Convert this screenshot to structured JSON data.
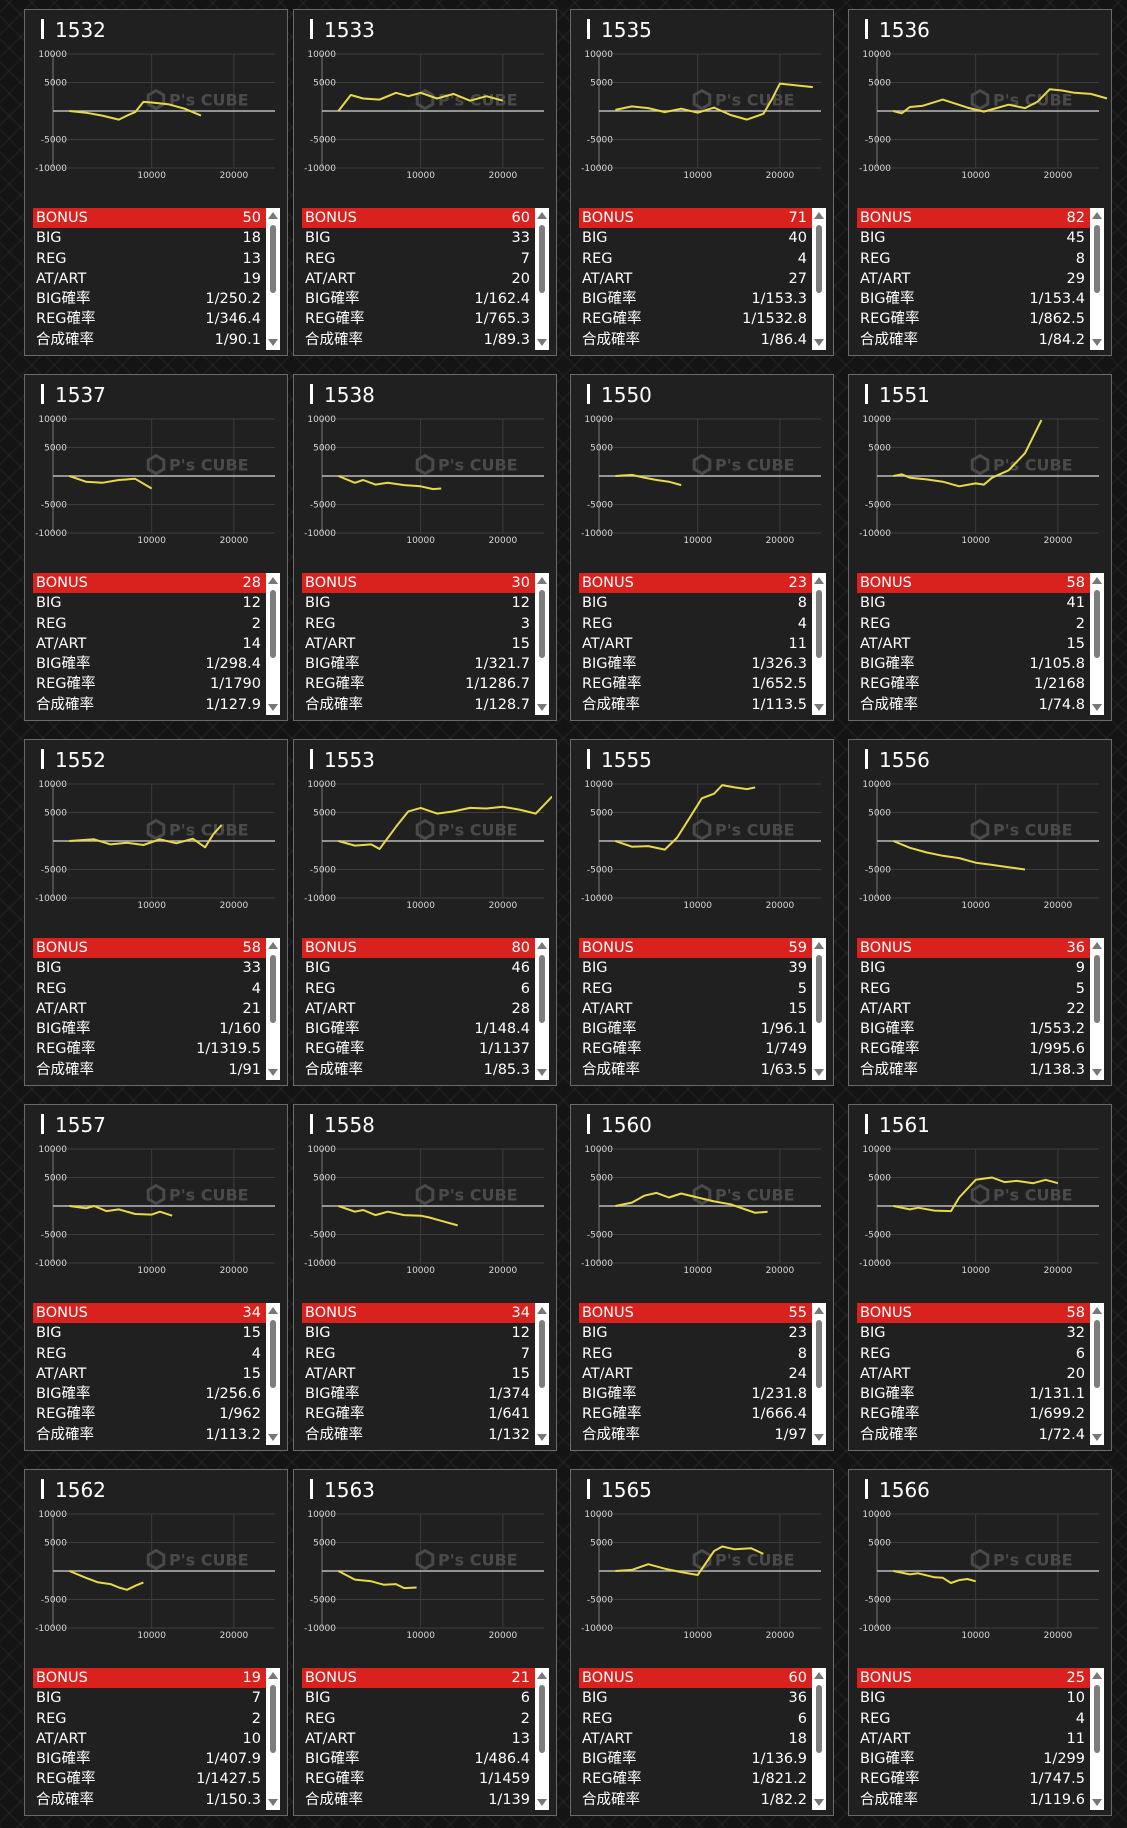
{
  "graph_axis": {
    "y_ticks": [
      "10000",
      "5000",
      "-5000",
      "-10000"
    ],
    "x_ticks": [
      "10000",
      "20000"
    ],
    "watermark_brand": "P's CUBE",
    "line_color": "#e8d84a",
    "zero_line_color": "#bbbbbb"
  },
  "stat_labels": {
    "bonus": "BONUS",
    "big": "BIG",
    "reg": "REG",
    "at_art": "AT/ART",
    "big_prob": "BIG確率",
    "reg_prob": "REG確率",
    "total_prob": "合成確率"
  },
  "colors": {
    "bonus_bar": "#d9211d",
    "card_bg": "#202020",
    "page_bg": "#141414"
  },
  "machines": [
    {
      "number": "1532",
      "bonus": "50",
      "big": "18",
      "reg": "13",
      "at_art": "19",
      "big_prob": "1/250.2",
      "reg_prob": "1/346.4",
      "total_prob": "1/90.1",
      "chart_data": {
        "type": "line",
        "xlim": [
          -2000,
          25000
        ],
        "ylim": [
          -10000,
          10000
        ],
        "x": [
          0,
          2000,
          4000,
          6000,
          7000,
          8000,
          9000,
          10000,
          12000,
          14000,
          16000
        ],
        "y": [
          0,
          -300,
          -800,
          -1500,
          -800,
          -200,
          1600,
          1500,
          1200,
          400,
          -800
        ]
      }
    },
    {
      "number": "1533",
      "bonus": "60",
      "big": "33",
      "reg": "7",
      "at_art": "20",
      "big_prob": "1/162.4",
      "reg_prob": "1/765.3",
      "total_prob": "1/89.3",
      "chart_data": {
        "type": "line",
        "xlim": [
          -2000,
          25000
        ],
        "ylim": [
          -10000,
          10000
        ],
        "x": [
          0,
          1500,
          3000,
          5000,
          7000,
          8500,
          10000,
          12000,
          14000,
          16000,
          18000,
          20000
        ],
        "y": [
          0,
          2800,
          2200,
          2000,
          3200,
          2600,
          3200,
          2200,
          3000,
          1800,
          2600,
          1800
        ]
      }
    },
    {
      "number": "1535",
      "bonus": "71",
      "big": "40",
      "reg": "4",
      "at_art": "27",
      "big_prob": "1/153.3",
      "reg_prob": "1/1532.8",
      "total_prob": "1/86.4",
      "chart_data": {
        "type": "line",
        "xlim": [
          -2000,
          25000
        ],
        "ylim": [
          -10000,
          10000
        ],
        "x": [
          0,
          2000,
          4000,
          6000,
          8000,
          10000,
          12000,
          14000,
          16000,
          18000,
          19000,
          20000,
          22000,
          24000
        ],
        "y": [
          200,
          800,
          500,
          -200,
          400,
          -300,
          600,
          -700,
          -1500,
          -500,
          2000,
          4800,
          4500,
          4200
        ]
      }
    },
    {
      "number": "1536",
      "bonus": "82",
      "big": "45",
      "reg": "8",
      "at_art": "29",
      "big_prob": "1/153.4",
      "reg_prob": "1/862.5",
      "total_prob": "1/84.2",
      "chart_data": {
        "type": "line",
        "xlim": [
          -2000,
          25000
        ],
        "ylim": [
          -10000,
          10000
        ],
        "x": [
          0,
          1000,
          2000,
          3500,
          6000,
          9000,
          11000,
          14000,
          16000,
          17500,
          19000,
          20500,
          22000,
          24000,
          26000
        ],
        "y": [
          0,
          -400,
          700,
          900,
          2000,
          600,
          -100,
          1100,
          500,
          1600,
          3800,
          3600,
          3200,
          3000,
          2200
        ]
      }
    },
    {
      "number": "1537",
      "bonus": "28",
      "big": "12",
      "reg": "2",
      "at_art": "14",
      "big_prob": "1/298.4",
      "reg_prob": "1/1790",
      "total_prob": "1/127.9",
      "chart_data": {
        "type": "line",
        "xlim": [
          -2000,
          25000
        ],
        "ylim": [
          -10000,
          10000
        ],
        "x": [
          0,
          2000,
          4000,
          6000,
          8000,
          10000
        ],
        "y": [
          0,
          -1000,
          -1200,
          -700,
          -500,
          -2200
        ]
      }
    },
    {
      "number": "1538",
      "bonus": "30",
      "big": "12",
      "reg": "3",
      "at_art": "15",
      "big_prob": "1/321.7",
      "reg_prob": "1/1286.7",
      "total_prob": "1/128.7",
      "chart_data": {
        "type": "line",
        "xlim": [
          -2000,
          25000
        ],
        "ylim": [
          -10000,
          10000
        ],
        "x": [
          0,
          2000,
          3000,
          4500,
          6000,
          8000,
          10000,
          11500,
          12500
        ],
        "y": [
          0,
          -1200,
          -700,
          -1500,
          -1200,
          -1600,
          -1800,
          -2300,
          -2200
        ]
      }
    },
    {
      "number": "1550",
      "bonus": "23",
      "big": "8",
      "reg": "4",
      "at_art": "11",
      "big_prob": "1/326.3",
      "reg_prob": "1/652.5",
      "total_prob": "1/113.5",
      "chart_data": {
        "type": "line",
        "xlim": [
          -2000,
          25000
        ],
        "ylim": [
          -10000,
          10000
        ],
        "x": [
          0,
          2000,
          3500,
          5000,
          6500,
          8000
        ],
        "y": [
          0,
          200,
          -300,
          -700,
          -1000,
          -1600
        ]
      }
    },
    {
      "number": "1551",
      "bonus": "58",
      "big": "41",
      "reg": "2",
      "at_art": "15",
      "big_prob": "1/105.8",
      "reg_prob": "1/2168",
      "total_prob": "1/74.8",
      "chart_data": {
        "type": "line",
        "xlim": [
          -2000,
          25000
        ],
        "ylim": [
          -10000,
          10000
        ],
        "x": [
          0,
          1000,
          2000,
          4000,
          6000,
          8000,
          10000,
          11000,
          12000,
          14000,
          16000,
          18000
        ],
        "y": [
          0,
          300,
          -300,
          -600,
          -1000,
          -1800,
          -1300,
          -1500,
          -300,
          1000,
          4000,
          9800
        ]
      }
    },
    {
      "number": "1552",
      "bonus": "58",
      "big": "33",
      "reg": "4",
      "at_art": "21",
      "big_prob": "1/160",
      "reg_prob": "1/1319.5",
      "total_prob": "1/91",
      "chart_data": {
        "type": "line",
        "xlim": [
          -2000,
          25000
        ],
        "ylim": [
          -10000,
          10000
        ],
        "x": [
          0,
          3000,
          5000,
          7000,
          9000,
          11000,
          13000,
          15000,
          16500,
          17500,
          18500
        ],
        "y": [
          0,
          300,
          -600,
          -300,
          -700,
          300,
          -400,
          400,
          -1100,
          1200,
          2800
        ]
      }
    },
    {
      "number": "1553",
      "bonus": "80",
      "big": "46",
      "reg": "6",
      "at_art": "28",
      "big_prob": "1/148.4",
      "reg_prob": "1/1137",
      "total_prob": "1/85.3",
      "chart_data": {
        "type": "line",
        "xlim": [
          -2000,
          25000
        ],
        "ylim": [
          -10000,
          10000
        ],
        "x": [
          0,
          2000,
          4000,
          5000,
          7000,
          8500,
          10000,
          12000,
          14000,
          16000,
          18000,
          20000,
          22000,
          24000,
          26000
        ],
        "y": [
          0,
          -800,
          -600,
          -1400,
          2500,
          5200,
          5800,
          4800,
          5200,
          5800,
          5700,
          6000,
          5500,
          4800,
          7800
        ]
      }
    },
    {
      "number": "1555",
      "bonus": "59",
      "big": "39",
      "reg": "5",
      "at_art": "15",
      "big_prob": "1/96.1",
      "reg_prob": "1/749",
      "total_prob": "1/63.5",
      "chart_data": {
        "type": "line",
        "xlim": [
          -2000,
          25000
        ],
        "ylim": [
          -10000,
          10000
        ],
        "x": [
          0,
          2000,
          4000,
          6000,
          7500,
          9000,
          10500,
          12000,
          13000,
          14500,
          16000,
          17000
        ],
        "y": [
          0,
          -1000,
          -900,
          -1500,
          600,
          4000,
          7500,
          8300,
          9800,
          9400,
          9100,
          9400
        ]
      }
    },
    {
      "number": "1556",
      "bonus": "36",
      "big": "9",
      "reg": "5",
      "at_art": "22",
      "big_prob": "1/553.2",
      "reg_prob": "1/995.6",
      "total_prob": "1/138.3",
      "chart_data": {
        "type": "line",
        "xlim": [
          -2000,
          25000
        ],
        "ylim": [
          -10000,
          10000
        ],
        "x": [
          0,
          2000,
          4000,
          6000,
          8000,
          10000,
          12000,
          14000,
          16000
        ],
        "y": [
          0,
          -1200,
          -2000,
          -2600,
          -3000,
          -3800,
          -4200,
          -4600,
          -5000
        ]
      }
    },
    {
      "number": "1557",
      "bonus": "34",
      "big": "15",
      "reg": "4",
      "at_art": "15",
      "big_prob": "1/256.6",
      "reg_prob": "1/962",
      "total_prob": "1/113.2",
      "chart_data": {
        "type": "line",
        "xlim": [
          -2000,
          25000
        ],
        "ylim": [
          -10000,
          10000
        ],
        "x": [
          0,
          2000,
          3000,
          4500,
          6000,
          8000,
          10000,
          11000,
          12500
        ],
        "y": [
          0,
          -400,
          0,
          -900,
          -600,
          -1400,
          -1500,
          -1000,
          -1700
        ]
      }
    },
    {
      "number": "1558",
      "bonus": "34",
      "big": "12",
      "reg": "7",
      "at_art": "15",
      "big_prob": "1/374",
      "reg_prob": "1/641",
      "total_prob": "1/132",
      "chart_data": {
        "type": "line",
        "xlim": [
          -2000,
          25000
        ],
        "ylim": [
          -10000,
          10000
        ],
        "x": [
          0,
          2000,
          3000,
          4500,
          6000,
          8000,
          10000,
          11000,
          12500,
          14500
        ],
        "y": [
          0,
          -1000,
          -700,
          -1600,
          -1000,
          -1600,
          -1700,
          -2000,
          -2600,
          -3400
        ]
      }
    },
    {
      "number": "1560",
      "bonus": "55",
      "big": "23",
      "reg": "8",
      "at_art": "24",
      "big_prob": "1/231.8",
      "reg_prob": "1/666.4",
      "total_prob": "1/97",
      "chart_data": {
        "type": "line",
        "xlim": [
          -2000,
          25000
        ],
        "ylim": [
          -10000,
          10000
        ],
        "x": [
          0,
          2000,
          3500,
          5000,
          6500,
          8000,
          10000,
          12000,
          14000,
          16000,
          17000,
          18500
        ],
        "y": [
          0,
          600,
          1800,
          2300,
          1500,
          2200,
          1500,
          800,
          300,
          -700,
          -1200,
          -1000
        ]
      }
    },
    {
      "number": "1561",
      "bonus": "58",
      "big": "32",
      "reg": "6",
      "at_art": "20",
      "big_prob": "1/131.1",
      "reg_prob": "1/699.2",
      "total_prob": "1/72.4",
      "chart_data": {
        "type": "line",
        "xlim": [
          -2000,
          25000
        ],
        "ylim": [
          -10000,
          10000
        ],
        "x": [
          0,
          2000,
          3000,
          5000,
          7000,
          8000,
          10000,
          12000,
          13500,
          15000,
          17000,
          18500,
          20000
        ],
        "y": [
          0,
          -600,
          -300,
          -800,
          -900,
          1500,
          4600,
          5000,
          4200,
          4400,
          4000,
          4600,
          4000
        ]
      }
    },
    {
      "number": "1562",
      "bonus": "19",
      "big": "7",
      "reg": "2",
      "at_art": "10",
      "big_prob": "1/407.9",
      "reg_prob": "1/1427.5",
      "total_prob": "1/150.3",
      "chart_data": {
        "type": "line",
        "xlim": [
          -2000,
          25000
        ],
        "ylim": [
          -10000,
          10000
        ],
        "x": [
          0,
          2000,
          3500,
          5000,
          6000,
          7000,
          8000,
          9000
        ],
        "y": [
          0,
          -1200,
          -2000,
          -2300,
          -2900,
          -3300,
          -2600,
          -2000
        ]
      }
    },
    {
      "number": "1563",
      "bonus": "21",
      "big": "6",
      "reg": "2",
      "at_art": "13",
      "big_prob": "1/486.4",
      "reg_prob": "1/1459",
      "total_prob": "1/139",
      "chart_data": {
        "type": "line",
        "xlim": [
          -2000,
          25000
        ],
        "ylim": [
          -10000,
          10000
        ],
        "x": [
          0,
          2000,
          4000,
          5500,
          7000,
          8000,
          9500
        ],
        "y": [
          0,
          -1500,
          -1800,
          -2400,
          -2300,
          -3000,
          -2900
        ]
      }
    },
    {
      "number": "1565",
      "bonus": "60",
      "big": "36",
      "reg": "6",
      "at_art": "18",
      "big_prob": "1/136.9",
      "reg_prob": "1/821.2",
      "total_prob": "1/82.2",
      "chart_data": {
        "type": "line",
        "xlim": [
          -2000,
          25000
        ],
        "ylim": [
          -10000,
          10000
        ],
        "x": [
          0,
          2000,
          4000,
          6000,
          8000,
          10000,
          12000,
          13000,
          14500,
          16500,
          18000
        ],
        "y": [
          0,
          200,
          1200,
          400,
          -200,
          -700,
          3500,
          4300,
          3800,
          4000,
          3000
        ]
      }
    },
    {
      "number": "1566",
      "bonus": "25",
      "big": "10",
      "reg": "4",
      "at_art": "11",
      "big_prob": "1/299",
      "reg_prob": "1/747.5",
      "total_prob": "1/119.6",
      "chart_data": {
        "type": "line",
        "xlim": [
          -2000,
          25000
        ],
        "ylim": [
          -10000,
          10000
        ],
        "x": [
          0,
          2000,
          3000,
          5000,
          6000,
          7000,
          8000,
          9000,
          10000
        ],
        "y": [
          0,
          -600,
          -400,
          -1100,
          -1200,
          -2100,
          -1600,
          -1400,
          -1800
        ]
      }
    }
  ]
}
